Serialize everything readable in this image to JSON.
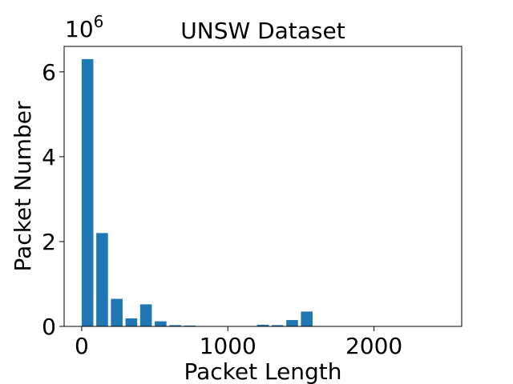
{
  "chart_data": {
    "type": "bar",
    "title": "UNSW Dataset",
    "xlabel": "Packet Length",
    "ylabel": "Packet Number",
    "scale_label": "10",
    "scale_exponent": "6",
    "xlim": [
      -120,
      2600
    ],
    "ylim": [
      0,
      6.6
    ],
    "bar_width": 80,
    "x": [
      40,
      140,
      240,
      340,
      440,
      540,
      640,
      740,
      840,
      940,
      1040,
      1140,
      1240,
      1340,
      1440,
      1540
    ],
    "values": [
      6.3,
      2.2,
      0.65,
      0.19,
      0.52,
      0.12,
      0.03,
      0.02,
      0.005,
      0.005,
      0.005,
      0.005,
      0.04,
      0.03,
      0.15,
      0.35
    ],
    "x_ticks": [
      0,
      1000,
      2000
    ],
    "x_tick_labels": [
      "0",
      "1000",
      "2000"
    ],
    "y_ticks": [
      0,
      2,
      4,
      6
    ],
    "y_tick_labels": [
      "0",
      "2",
      "4",
      "6"
    ],
    "grid": false,
    "colors": {
      "bar": "#1f77b4",
      "axes": "#000000"
    }
  }
}
